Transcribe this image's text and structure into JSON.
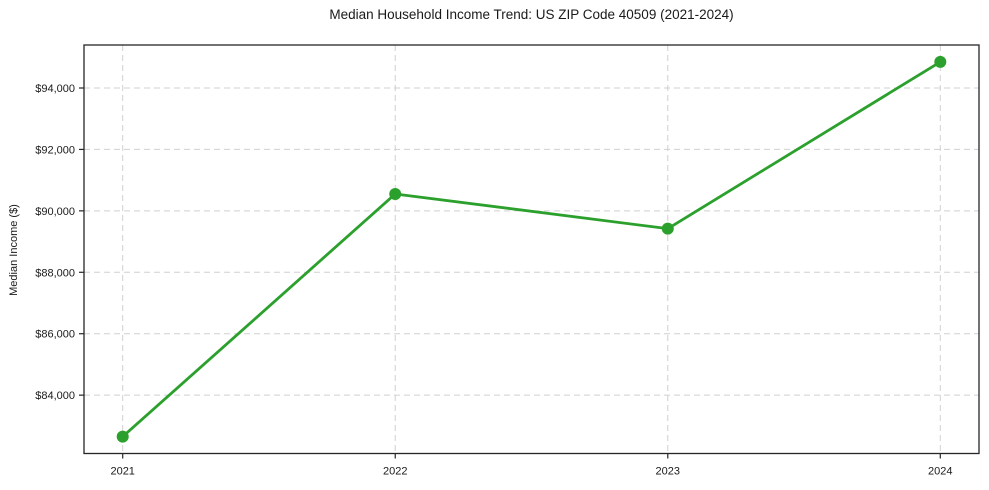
{
  "chart_data": {
    "type": "line",
    "title": "Median Household Income Trend: US ZIP Code 40509 (2021-2024)",
    "xlabel": "",
    "ylabel": "Median Income ($)",
    "categories": [
      "2021",
      "2022",
      "2023",
      "2024"
    ],
    "series": [
      {
        "name": "Median Household Income",
        "values": [
          82650,
          90550,
          89420,
          94850
        ]
      }
    ],
    "ylim": [
      82100,
      95400
    ],
    "yticks": [
      84000,
      86000,
      88000,
      90000,
      92000,
      94000
    ],
    "ytick_labels": [
      "$84,000",
      "$86,000",
      "$88,000",
      "$90,000",
      "$92,000",
      "$94,000"
    ],
    "grid": "both",
    "grid_style": "dashed",
    "legend_position": "none",
    "colors": {
      "line": "#2ca02c",
      "marker": "#2ca02c",
      "grid": "#d0d0d0",
      "spine": "#262626",
      "text": "#1a1a1a",
      "background": "#ffffff"
    },
    "marker": "circle",
    "marker_radius": 6,
    "line_width": 2.8
  }
}
